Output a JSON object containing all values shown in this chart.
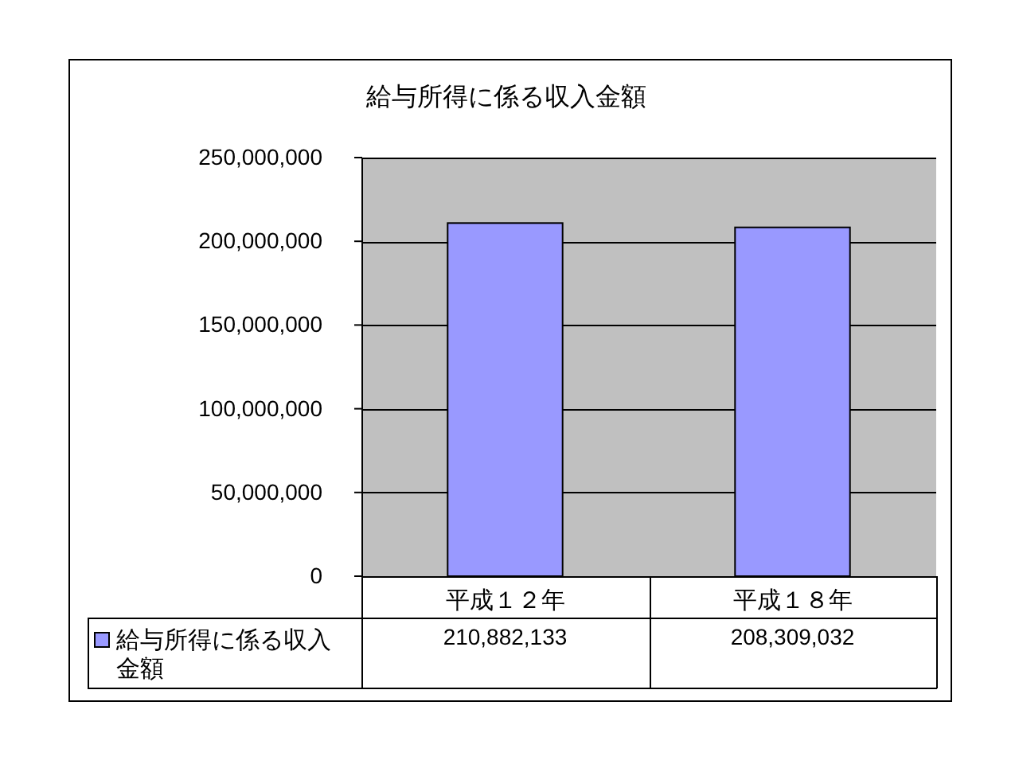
{
  "chart_data": {
    "type": "bar",
    "title": "給与所得に係る収入金額",
    "categories": [
      "平成１２年",
      "平成１８年"
    ],
    "series": [
      {
        "name": "給与所得に係る収入金額",
        "color": "#9999ff",
        "values": [
          210882133,
          208309032
        ],
        "value_labels": [
          "210,882,133",
          "208,309,032"
        ]
      }
    ],
    "ylim": [
      0,
      250000000
    ],
    "yticks": [
      {
        "value": 0,
        "label": "0"
      },
      {
        "value": 50000000,
        "label": "50,000,000"
      },
      {
        "value": 100000000,
        "label": "100,000,000"
      },
      {
        "value": 150000000,
        "label": "150,000,000"
      },
      {
        "value": 200000000,
        "label": "200,000,000"
      },
      {
        "value": 250000000,
        "label": "250,000,000"
      }
    ],
    "grid": "y",
    "legend": "bottom left"
  }
}
